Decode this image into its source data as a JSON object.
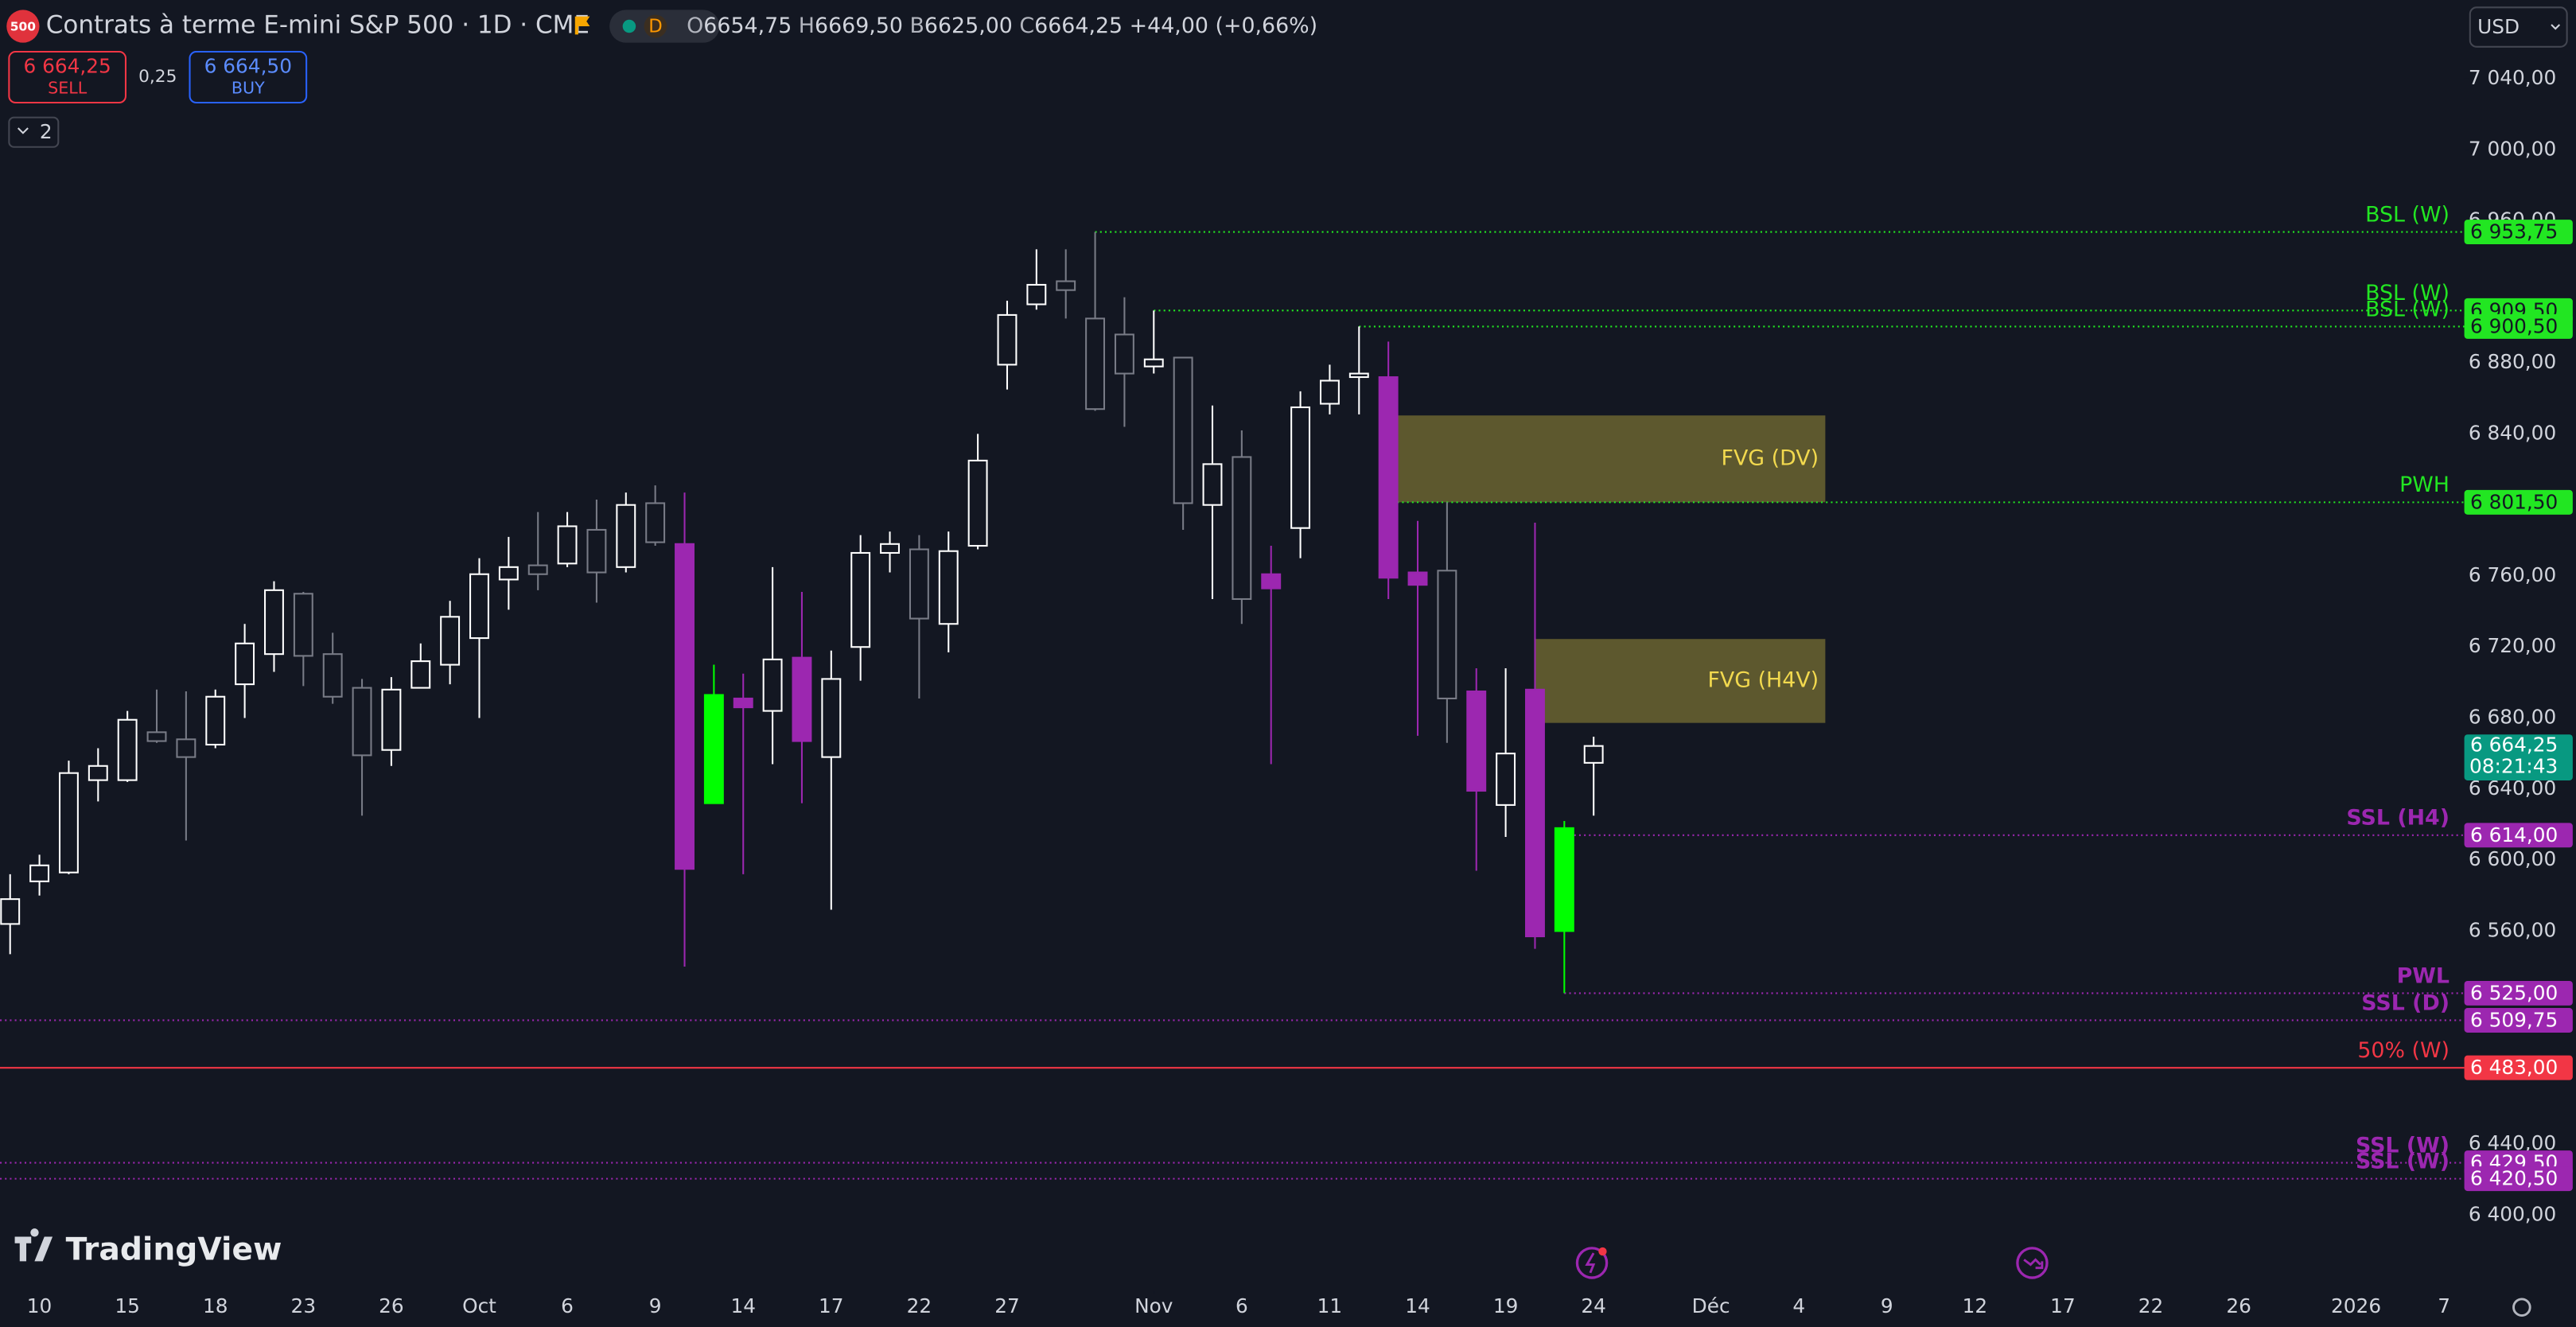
{
  "header": {
    "symbol_badge": "500",
    "title": "Contrats à terme E-mini S&P 500 · 1D · CME",
    "interval_badge": "D",
    "ohlc": [
      {
        "prefix": "O",
        "value": "6654,75"
      },
      {
        "prefix": "H",
        "value": "6669,50"
      },
      {
        "prefix": "B",
        "value": "6625,00"
      },
      {
        "prefix": "C",
        "value": "6664,25"
      }
    ],
    "change": "+44,00 (+0,66%)",
    "sell_price": "6 664,25",
    "sell_label": "SELL",
    "spread": "0,25",
    "buy_price": "6 664,50",
    "buy_label": "BUY",
    "indicators_count": "2",
    "currency": "USD",
    "brand": "TradingView"
  },
  "chart_data": {
    "type": "candlestick",
    "x": [
      -1,
      0,
      1,
      2,
      3,
      4,
      5,
      6,
      7,
      8,
      9,
      10,
      11,
      12,
      13,
      14,
      15,
      16,
      17,
      18,
      19,
      20,
      21,
      22,
      23,
      24,
      25,
      26,
      27,
      28,
      29,
      30,
      31,
      32,
      33,
      34,
      35,
      36,
      37,
      38,
      39,
      40,
      41,
      42,
      43,
      44,
      45,
      46,
      47,
      48,
      49,
      50,
      51,
      52,
      53
    ],
    "open": [
      6564,
      6588,
      6593,
      6645,
      6645,
      6672,
      6668,
      6665,
      6699,
      6716,
      6750,
      6716,
      6697,
      6662,
      6697,
      6710,
      6725,
      6758,
      6766,
      6767,
      6786,
      6765,
      6801,
      6778,
      6632,
      6691,
      6684,
      6714,
      6658,
      6720,
      6773,
      6775,
      6733,
      6777,
      6879,
      6913,
      6926,
      6905,
      6896,
      6878,
      6883,
      6800,
      6827,
      6761,
      6787,
      6857,
      6872,
      6872,
      6762,
      6763,
      6695,
      6631,
      6696,
      6560,
      6654.75
    ],
    "high": [
      6592,
      6603,
      6656,
      6663,
      6684,
      6696,
      6695,
      6696,
      6733,
      6757,
      6751,
      6728,
      6702,
      6703,
      6722,
      6746,
      6770,
      6782,
      6796,
      6796,
      6803,
      6807,
      6811,
      6807,
      6710,
      6705,
      6765,
      6751,
      6718,
      6783,
      6785,
      6783,
      6785,
      6840,
      6915,
      6944,
      6944,
      6953.75,
      6917,
      6909.5,
      6883,
      6856,
      6842,
      6777,
      6864,
      6879,
      6900.5,
      6892,
      6791,
      6801.5,
      6708,
      6708,
      6790,
      6622,
      6669.5
    ],
    "low": [
      6547,
      6580,
      6592,
      6633,
      6644,
      6666,
      6611,
      6663,
      6680,
      6706,
      6698,
      6688,
      6625,
      6653,
      6697,
      6699,
      6680,
      6741,
      6752,
      6765,
      6745,
      6762,
      6777,
      6540,
      6632,
      6592,
      6654,
      6632,
      6572,
      6701,
      6762,
      6691,
      6717,
      6775,
      6865,
      6910,
      6905,
      6853,
      6844,
      6874,
      6786,
      6747,
      6733,
      6654,
      6770,
      6851,
      6851,
      6747,
      6670,
      6666,
      6594,
      6613,
      6550,
      6525,
      6625
    ],
    "close": [
      6578,
      6597,
      6649,
      6653,
      6679,
      6667,
      6658,
      6692,
      6722,
      6752,
      6715,
      6692,
      6659,
      6696,
      6712,
      6737,
      6761,
      6765,
      6761,
      6788,
      6762,
      6800,
      6779,
      6595,
      6693,
      6686,
      6713,
      6667,
      6702,
      6773,
      6778,
      6736,
      6774,
      6825,
      6907,
      6924,
      6921,
      6854,
      6874,
      6882,
      6801,
      6823,
      6747,
      6753,
      6855,
      6870,
      6874,
      6759,
      6755,
      6691,
      6639,
      6660,
      6557,
      6618,
      6664.25
    ],
    "colors": [
      null,
      null,
      null,
      null,
      null,
      null,
      null,
      null,
      null,
      null,
      null,
      null,
      null,
      null,
      null,
      null,
      null,
      null,
      null,
      null,
      null,
      null,
      null,
      "#9c27b0",
      "#00ff00",
      "#9c27b0",
      null,
      "#9c27b0",
      null,
      null,
      null,
      null,
      null,
      null,
      null,
      null,
      null,
      null,
      null,
      null,
      null,
      null,
      null,
      "#9c27b0",
      null,
      null,
      null,
      "#9c27b0",
      "#9c27b0",
      null,
      "#9c27b0",
      null,
      "#9c27b0",
      "#00ff00",
      null
    ],
    "up_color": "#ffffff",
    "down_color": "#787b86",
    "xlim": [
      -1.345,
      82.69
    ],
    "ylim": [
      6362.9,
      7084.4
    ],
    "xticks": [
      {
        "value": 0,
        "label": "10"
      },
      {
        "value": 3,
        "label": "15"
      },
      {
        "value": 6,
        "label": "18"
      },
      {
        "value": 9,
        "label": "23"
      },
      {
        "value": 12,
        "label": "26"
      },
      {
        "value": 15,
        "label": "Oct"
      },
      {
        "value": 18,
        "label": "6"
      },
      {
        "value": 21,
        "label": "9"
      },
      {
        "value": 24,
        "label": "14"
      },
      {
        "value": 27,
        "label": "17"
      },
      {
        "value": 30,
        "label": "22"
      },
      {
        "value": 33,
        "label": "27"
      },
      {
        "value": 38,
        "label": "Nov"
      },
      {
        "value": 41,
        "label": "6"
      },
      {
        "value": 44,
        "label": "11"
      },
      {
        "value": 47,
        "label": "14"
      },
      {
        "value": 50,
        "label": "19"
      },
      {
        "value": 53,
        "label": "24"
      },
      {
        "value": 57,
        "label": "Déc"
      },
      {
        "value": 60,
        "label": "4"
      },
      {
        "value": 63,
        "label": "9"
      },
      {
        "value": 66,
        "label": "12"
      },
      {
        "value": 69,
        "label": "17"
      },
      {
        "value": 72,
        "label": "22"
      },
      {
        "value": 75,
        "label": "26"
      },
      {
        "value": 79,
        "label": "2026"
      },
      {
        "value": 82,
        "label": "7"
      }
    ],
    "yticks": [
      {
        "value": 7040,
        "label": "7 040,00"
      },
      {
        "value": 7000,
        "label": "7 000,00"
      },
      {
        "value": 6960,
        "label": "6 960,00"
      },
      {
        "value": 6880,
        "label": "6 880,00"
      },
      {
        "value": 6840,
        "label": "6 840,00"
      },
      {
        "value": 6760,
        "label": "6 760,00"
      },
      {
        "value": 6720,
        "label": "6 720,00"
      },
      {
        "value": 6680,
        "label": "6 680,00"
      },
      {
        "value": 6640,
        "label": "6 640,00"
      },
      {
        "value": 6600,
        "label": "6 600,00"
      },
      {
        "value": 6560,
        "label": "6 560,00"
      },
      {
        "value": 6440,
        "label": "6 440,00"
      },
      {
        "value": 6400,
        "label": "6 400,00"
      }
    ],
    "grid": false,
    "zones": [
      {
        "label": "FVG (DV)",
        "top": 6850.4,
        "bottom": 6801.5,
        "from": 46.3,
        "to": 60.9,
        "color": "#6b6430",
        "text_color": "#f2d94e"
      },
      {
        "label": "FVG (H4V)",
        "top": 6724.5,
        "bottom": 6677.25,
        "from": 51,
        "to": 60.9,
        "color": "#6b6430",
        "text_color": "#f2d94e"
      }
    ],
    "levels": [
      {
        "label": "BSL (W)",
        "value": 6953.75,
        "value_label": "6 953,75",
        "start": 36,
        "style": "dotted",
        "color": "#22e622",
        "text_color": "#131722"
      },
      {
        "label": "BSL (W)",
        "value": 6909.5,
        "value_label": "6 909,50",
        "start": 38,
        "style": "dotted",
        "color": "#22e622",
        "text_color": "#131722"
      },
      {
        "label": "BSL (W)",
        "value": 6900.5,
        "value_label": "6 900,50",
        "start": 45,
        "style": "dotted",
        "color": "#22e622",
        "text_color": "#131722"
      },
      {
        "label": "PWH",
        "value": 6801.5,
        "value_label": "6 801,50",
        "start": 46.3,
        "style": "dotted",
        "color": "#22e622",
        "text_color": "#131722"
      },
      {
        "label": "SSL (H4)",
        "value": 6614,
        "value_label": "6 614,00",
        "start": 52,
        "style": "dotted",
        "color": "#9c27b0",
        "text_color": "#ffffff"
      },
      {
        "label": "PWL",
        "value": 6525,
        "value_label": "6 525,00",
        "start": 52,
        "style": "dotted",
        "color": "#9c27b0",
        "text_color": "#ffffff"
      },
      {
        "label": "SSL (D)",
        "value": 6509.75,
        "value_label": "6 509,75",
        "start": -1.345,
        "style": "dotted",
        "color": "#9c27b0",
        "text_color": "#ffffff"
      },
      {
        "label": "50% (W)",
        "value": 6483,
        "value_label": "6 483,00",
        "start": -1.345,
        "style": "solid",
        "color": "#f23645",
        "text_color": "#ffffff"
      },
      {
        "label": "SSL (W)",
        "value": 6429.5,
        "value_label": "6 429,50",
        "start": -1.345,
        "style": "dotted",
        "color": "#9c27b0",
        "text_color": "#ffffff"
      },
      {
        "label": "SSL (W)",
        "value": 6420.5,
        "value_label": "6 420,50",
        "start": -1.345,
        "style": "dotted",
        "color": "#9c27b0",
        "text_color": "#ffffff"
      }
    ],
    "last_price": {
      "value": 6664.25,
      "label": "6 664,25",
      "countdown": "08:21:43",
      "color": "#089981"
    }
  }
}
